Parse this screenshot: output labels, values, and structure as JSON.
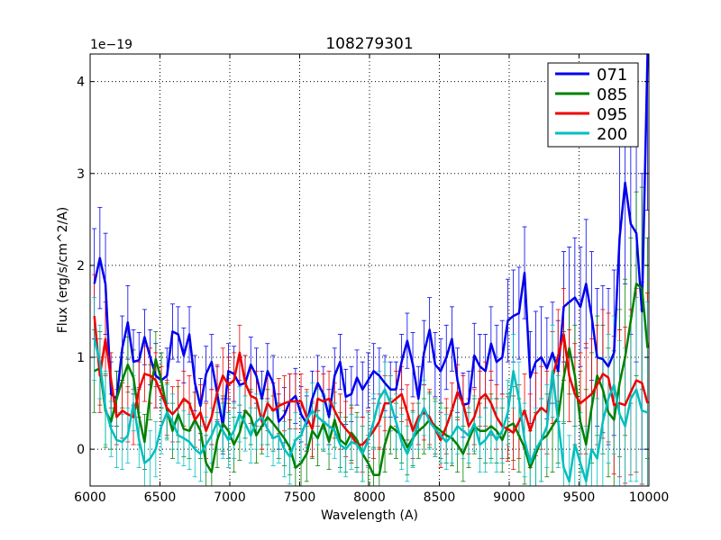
{
  "chart_data": {
    "type": "line",
    "title": "108279301",
    "xlabel": "Wavelength (A)",
    "ylabel": "Flux (erg/s/cm^2/A)",
    "y_offset_label": "1e−19",
    "xlim": [
      6000,
      10000
    ],
    "ylim": [
      -0.4,
      4.3
    ],
    "xticks": [
      6000,
      6500,
      7000,
      7500,
      8000,
      8500,
      9000,
      9500,
      10000
    ],
    "yticks": [
      0,
      1,
      2,
      3,
      4
    ],
    "grid": true,
    "legend_position": "top-right",
    "x": [
      6030,
      6070,
      6110,
      6150,
      6190,
      6230,
      6270,
      6310,
      6350,
      6390,
      6430,
      6470,
      6510,
      6550,
      6590,
      6630,
      6670,
      6710,
      6750,
      6790,
      6830,
      6870,
      6910,
      6950,
      6990,
      7030,
      7070,
      7110,
      7150,
      7190,
      7230,
      7270,
      7310,
      7350,
      7390,
      7430,
      7470,
      7510,
      7550,
      7590,
      7630,
      7670,
      7710,
      7750,
      7790,
      7830,
      7870,
      7910,
      7950,
      7990,
      8030,
      8070,
      8110,
      8150,
      8190,
      8230,
      8270,
      8310,
      8350,
      8390,
      8430,
      8470,
      8510,
      8550,
      8590,
      8630,
      8670,
      8710,
      8750,
      8790,
      8830,
      8870,
      8910,
      8950,
      8990,
      9030,
      9070,
      9110,
      9150,
      9190,
      9230,
      9270,
      9310,
      9350,
      9390,
      9430,
      9470,
      9510,
      9550,
      9590,
      9630,
      9670,
      9710,
      9750,
      9790,
      9830,
      9870,
      9910,
      9950,
      9990
    ],
    "series": [
      {
        "name": "071",
        "color": "#0000ee",
        "values": [
          1.8,
          2.08,
          1.8,
          0.6,
          0.55,
          1.1,
          1.38,
          0.95,
          0.97,
          1.22,
          1.0,
          0.8,
          0.75,
          0.8,
          1.28,
          1.25,
          1.02,
          1.25,
          0.72,
          0.47,
          0.82,
          0.95,
          0.6,
          0.25,
          0.85,
          0.82,
          0.7,
          0.72,
          0.92,
          0.8,
          0.55,
          0.85,
          0.72,
          0.3,
          0.37,
          0.52,
          0.58,
          0.38,
          0.28,
          0.55,
          0.72,
          0.6,
          0.35,
          0.8,
          0.95,
          0.57,
          0.6,
          0.78,
          0.65,
          0.75,
          0.85,
          0.8,
          0.72,
          0.65,
          0.65,
          0.95,
          1.18,
          0.92,
          0.55,
          1.05,
          1.3,
          0.92,
          0.85,
          1.0,
          1.2,
          0.75,
          0.48,
          0.5,
          1.02,
          0.9,
          0.85,
          1.15,
          0.95,
          1.0,
          1.4,
          1.45,
          1.48,
          1.92,
          0.78,
          0.95,
          1.0,
          0.88,
          1.05,
          0.85,
          1.55,
          1.6,
          1.65,
          1.55,
          1.8,
          1.45,
          1.0,
          0.98,
          0.9,
          1.05,
          2.3,
          2.9,
          2.45,
          2.35,
          1.5,
          4.3
        ]
      },
      {
        "name": "085",
        "color": "#008000",
        "values": [
          0.85,
          0.88,
          0.42,
          0.3,
          0.55,
          0.75,
          0.92,
          0.78,
          0.35,
          0.08,
          0.62,
          0.98,
          0.75,
          0.42,
          0.2,
          0.38,
          0.22,
          0.2,
          0.32,
          0.2,
          -0.15,
          -0.25,
          0.1,
          0.28,
          0.2,
          0.05,
          0.18,
          0.42,
          0.35,
          0.15,
          0.25,
          0.35,
          0.28,
          0.2,
          0.12,
          0.02,
          -0.2,
          -0.15,
          -0.05,
          0.2,
          0.12,
          0.28,
          0.08,
          0.32,
          0.1,
          0.05,
          0.18,
          0.1,
          -0.05,
          -0.15,
          -0.28,
          -0.28,
          0.05,
          0.25,
          0.2,
          0.15,
          0.02,
          0.12,
          0.2,
          0.25,
          0.32,
          0.25,
          0.2,
          0.15,
          0.12,
          0.05,
          -0.05,
          0.1,
          0.25,
          0.2,
          0.2,
          0.25,
          0.2,
          0.1,
          0.25,
          0.28,
          0.15,
          0.02,
          -0.2,
          -0.05,
          0.1,
          0.15,
          0.25,
          0.35,
          0.78,
          1.1,
          0.8,
          0.3,
          0.05,
          0.45,
          0.8,
          0.65,
          0.4,
          0.32,
          0.72,
          1.0,
          1.4,
          1.8,
          1.75,
          1.1
        ]
      },
      {
        "name": "095",
        "color": "#ee0000",
        "values": [
          1.45,
          0.8,
          1.2,
          0.75,
          0.35,
          0.42,
          0.38,
          0.35,
          0.65,
          0.82,
          0.8,
          0.75,
          0.6,
          0.45,
          0.38,
          0.45,
          0.55,
          0.5,
          0.32,
          0.4,
          0.2,
          0.35,
          0.62,
          0.8,
          0.7,
          0.75,
          1.05,
          0.72,
          0.58,
          0.55,
          0.3,
          0.5,
          0.42,
          0.47,
          0.5,
          0.52,
          0.52,
          0.52,
          0.35,
          0.22,
          0.55,
          0.52,
          0.55,
          0.42,
          0.3,
          0.22,
          0.15,
          0.05,
          0.05,
          0.12,
          0.2,
          0.3,
          0.5,
          0.5,
          0.55,
          0.6,
          0.4,
          0.2,
          0.35,
          0.4,
          0.35,
          0.22,
          0.1,
          0.25,
          0.42,
          0.62,
          0.5,
          0.25,
          0.35,
          0.55,
          0.6,
          0.5,
          0.35,
          0.25,
          0.22,
          0.18,
          0.3,
          0.42,
          0.2,
          0.38,
          0.45,
          0.4,
          0.78,
          1.02,
          1.25,
          0.8,
          0.6,
          0.5,
          0.55,
          0.6,
          0.7,
          0.82,
          0.78,
          0.48,
          0.5,
          0.48,
          0.62,
          0.75,
          0.72,
          0.5
        ]
      },
      {
        "name": "200",
        "color": "#00bfbf",
        "values": [
          1.2,
          0.95,
          0.45,
          0.22,
          0.1,
          0.08,
          0.15,
          0.5,
          0.1,
          -0.15,
          -0.1,
          0.0,
          0.25,
          0.4,
          0.3,
          0.15,
          0.12,
          0.08,
          0.0,
          -0.05,
          0.05,
          0.15,
          0.3,
          0.2,
          0.1,
          0.2,
          0.38,
          0.28,
          0.15,
          0.3,
          0.35,
          0.22,
          0.12,
          0.15,
          0.0,
          -0.08,
          0.1,
          0.15,
          0.32,
          0.42,
          0.35,
          0.3,
          0.25,
          0.2,
          0.05,
          0.0,
          0.08,
          0.05,
          -0.05,
          0.1,
          0.3,
          0.55,
          0.65,
          0.5,
          0.3,
          0.08,
          -0.05,
          0.1,
          0.3,
          0.45,
          0.3,
          0.22,
          0.15,
          0.08,
          0.15,
          0.25,
          0.2,
          0.15,
          0.28,
          0.05,
          0.1,
          0.2,
          0.1,
          0.2,
          0.4,
          0.85,
          0.55,
          0.1,
          -0.15,
          0.0,
          0.1,
          0.25,
          0.85,
          0.3,
          -0.2,
          -0.35,
          0.05,
          -0.15,
          -0.35,
          0.0,
          -0.1,
          0.3,
          0.55,
          0.7,
          0.38,
          0.25,
          0.55,
          0.65,
          0.42,
          0.4
        ]
      }
    ],
    "errors": [
      [
        0.6,
        0.55,
        0.55,
        0.35,
        0.3,
        0.35,
        0.4,
        0.35,
        0.3,
        0.3,
        0.3,
        0.35,
        0.3,
        0.3,
        0.3,
        0.3,
        0.3,
        0.3,
        0.3,
        0.3,
        0.3,
        0.3,
        0.3,
        0.3,
        0.3,
        0.3,
        0.3,
        0.3,
        0.3,
        0.3,
        0.3,
        0.3,
        0.3,
        0.3,
        0.3,
        0.3,
        0.3,
        0.3,
        0.3,
        0.3,
        0.3,
        0.3,
        0.3,
        0.3,
        0.3,
        0.3,
        0.3,
        0.3,
        0.3,
        0.3,
        0.3,
        0.3,
        0.3,
        0.3,
        0.3,
        0.3,
        0.3,
        0.35,
        0.35,
        0.35,
        0.35,
        0.35,
        0.35,
        0.35,
        0.35,
        0.35,
        0.35,
        0.35,
        0.35,
        0.35,
        0.4,
        0.4,
        0.4,
        0.4,
        0.45,
        0.5,
        0.5,
        0.5,
        0.5,
        0.55,
        0.55,
        0.55,
        0.55,
        0.55,
        0.6,
        0.6,
        0.65,
        0.65,
        0.7,
        0.7,
        0.75,
        0.8,
        0.85,
        0.9,
        1.0,
        1.1,
        1.2,
        1.4,
        1.5,
        1.7
      ],
      [
        0.45,
        0.4,
        0.4,
        0.3,
        0.3,
        0.3,
        0.3,
        0.3,
        0.3,
        0.3,
        0.3,
        0.3,
        0.3,
        0.3,
        0.3,
        0.3,
        0.3,
        0.3,
        0.3,
        0.3,
        0.3,
        0.3,
        0.3,
        0.3,
        0.3,
        0.3,
        0.3,
        0.3,
        0.3,
        0.3,
        0.3,
        0.3,
        0.3,
        0.3,
        0.3,
        0.3,
        0.3,
        0.3,
        0.3,
        0.3,
        0.3,
        0.3,
        0.3,
        0.3,
        0.3,
        0.3,
        0.3,
        0.3,
        0.3,
        0.3,
        0.3,
        0.3,
        0.3,
        0.3,
        0.3,
        0.3,
        0.3,
        0.3,
        0.3,
        0.3,
        0.3,
        0.3,
        0.3,
        0.3,
        0.3,
        0.3,
        0.3,
        0.3,
        0.3,
        0.3,
        0.35,
        0.35,
        0.35,
        0.35,
        0.35,
        0.4,
        0.4,
        0.4,
        0.4,
        0.45,
        0.45,
        0.45,
        0.5,
        0.5,
        0.5,
        0.5,
        0.55,
        0.55,
        0.6,
        0.6,
        0.65,
        0.7,
        0.7,
        0.75,
        0.8,
        0.85,
        0.9,
        1.0,
        1.1,
        1.2
      ],
      [
        0.45,
        0.4,
        0.4,
        0.3,
        0.3,
        0.3,
        0.3,
        0.3,
        0.3,
        0.3,
        0.3,
        0.3,
        0.3,
        0.3,
        0.3,
        0.3,
        0.3,
        0.3,
        0.3,
        0.3,
        0.3,
        0.3,
        0.3,
        0.3,
        0.3,
        0.3,
        0.3,
        0.3,
        0.3,
        0.3,
        0.3,
        0.3,
        0.3,
        0.3,
        0.3,
        0.3,
        0.3,
        0.3,
        0.3,
        0.3,
        0.3,
        0.3,
        0.3,
        0.3,
        0.3,
        0.3,
        0.3,
        0.3,
        0.3,
        0.3,
        0.3,
        0.3,
        0.3,
        0.3,
        0.3,
        0.3,
        0.3,
        0.3,
        0.3,
        0.3,
        0.3,
        0.3,
        0.3,
        0.3,
        0.3,
        0.3,
        0.3,
        0.3,
        0.3,
        0.3,
        0.35,
        0.35,
        0.35,
        0.35,
        0.35,
        0.4,
        0.4,
        0.4,
        0.4,
        0.45,
        0.45,
        0.45,
        0.5,
        0.5,
        0.5,
        0.5,
        0.55,
        0.55,
        0.6,
        0.6,
        0.65,
        0.7,
        0.7,
        0.75,
        0.8,
        0.85,
        0.9,
        1.0,
        1.1,
        1.2
      ],
      [
        0.45,
        0.4,
        0.4,
        0.3,
        0.3,
        0.3,
        0.3,
        0.3,
        0.3,
        0.3,
        0.3,
        0.3,
        0.3,
        0.3,
        0.3,
        0.3,
        0.3,
        0.3,
        0.3,
        0.3,
        0.3,
        0.3,
        0.3,
        0.3,
        0.3,
        0.3,
        0.3,
        0.3,
        0.3,
        0.3,
        0.3,
        0.3,
        0.3,
        0.3,
        0.3,
        0.3,
        0.3,
        0.3,
        0.3,
        0.3,
        0.3,
        0.3,
        0.3,
        0.3,
        0.3,
        0.3,
        0.3,
        0.3,
        0.3,
        0.3,
        0.3,
        0.3,
        0.3,
        0.3,
        0.3,
        0.3,
        0.3,
        0.3,
        0.3,
        0.3,
        0.3,
        0.3,
        0.3,
        0.3,
        0.3,
        0.3,
        0.3,
        0.3,
        0.3,
        0.3,
        0.35,
        0.35,
        0.35,
        0.35,
        0.35,
        0.4,
        0.4,
        0.4,
        0.4,
        0.45,
        0.45,
        0.45,
        0.5,
        0.5,
        0.5,
        0.5,
        0.55,
        0.55,
        0.6,
        0.6,
        0.65,
        0.7,
        0.7,
        0.75,
        0.8,
        0.85,
        0.9,
        1.0,
        1.1,
        1.2
      ]
    ]
  }
}
